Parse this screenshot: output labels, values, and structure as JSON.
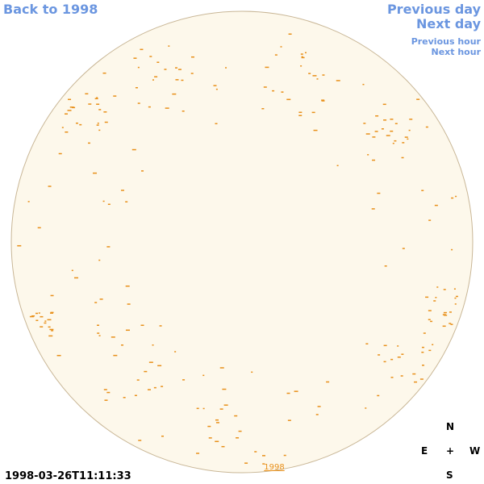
{
  "nav": {
    "back": "Back to 1998",
    "previous_day": "Previous day",
    "next_day": "Next day",
    "previous_hour": "Previous hour",
    "next_hour": "Next hour"
  },
  "timestamp": "1998-03-26T11:11:33",
  "year_label": "1998",
  "compass": {
    "north": "N",
    "east": "E",
    "center": "+",
    "west": "W",
    "south": "S"
  }
}
